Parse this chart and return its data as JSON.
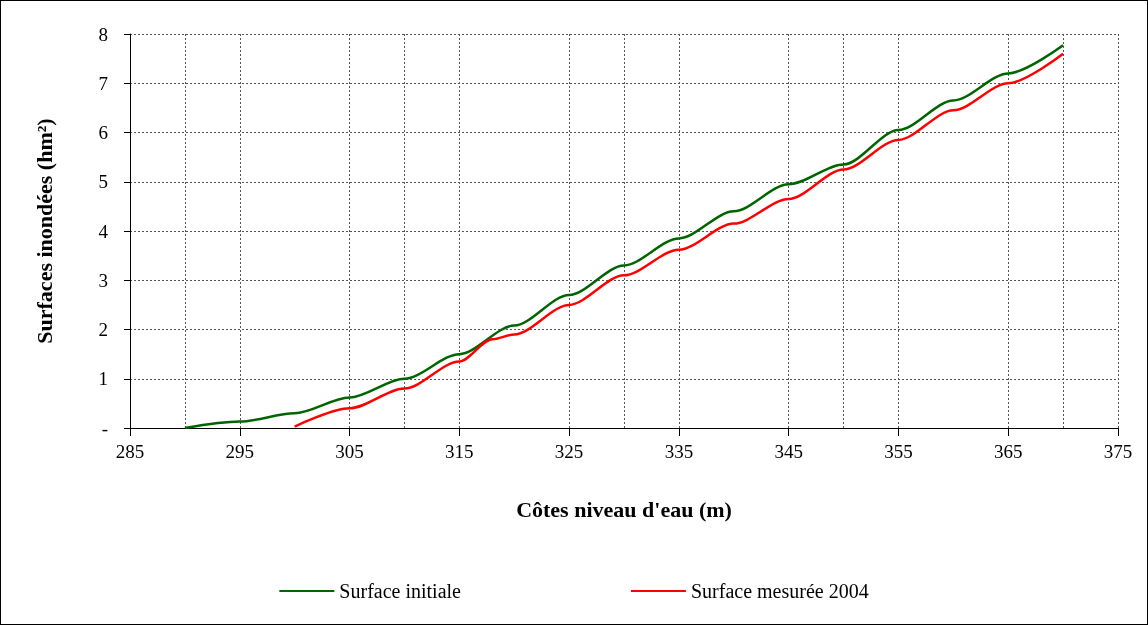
{
  "chart_data": {
    "type": "line",
    "xlabel": "Côtes niveau d'eau (m)",
    "ylabel": "Surfaces inondées (hm²)",
    "xlim": [
      285,
      375
    ],
    "xticks": [
      285,
      295,
      305,
      315,
      325,
      335,
      345,
      355,
      365,
      375
    ],
    "ylim": [
      0,
      8
    ],
    "yticks": [
      {
        "value": 0,
        "label": "-"
      },
      1,
      2,
      3,
      4,
      5,
      6,
      7,
      8
    ],
    "grid": true,
    "legend": "bottom",
    "marker": "none",
    "line_style": "solid",
    "series": [
      {
        "name": "Surface initiale",
        "color": "#006400",
        "x": [
          290,
          295,
          300,
          305,
          310,
          315,
          320,
          325,
          330,
          335,
          340,
          345,
          350,
          355,
          360,
          365,
          370
        ],
        "values": [
          0,
          0.13,
          0.3,
          0.62,
          1.0,
          1.5,
          2.08,
          2.7,
          3.3,
          3.85,
          4.4,
          4.95,
          5.35,
          6.05,
          6.65,
          7.2,
          7.77
        ]
      },
      {
        "name": "Surface mesurée 2004",
        "color": "#ff0000",
        "x": [
          300,
          305,
          310,
          315,
          318,
          320,
          325,
          330,
          335,
          340,
          345,
          350,
          355,
          360,
          365,
          370
        ],
        "values": [
          0.03,
          0.4,
          0.8,
          1.35,
          1.8,
          1.9,
          2.5,
          3.1,
          3.62,
          4.15,
          4.65,
          5.25,
          5.85,
          6.45,
          7.0,
          7.6
        ]
      }
    ]
  }
}
